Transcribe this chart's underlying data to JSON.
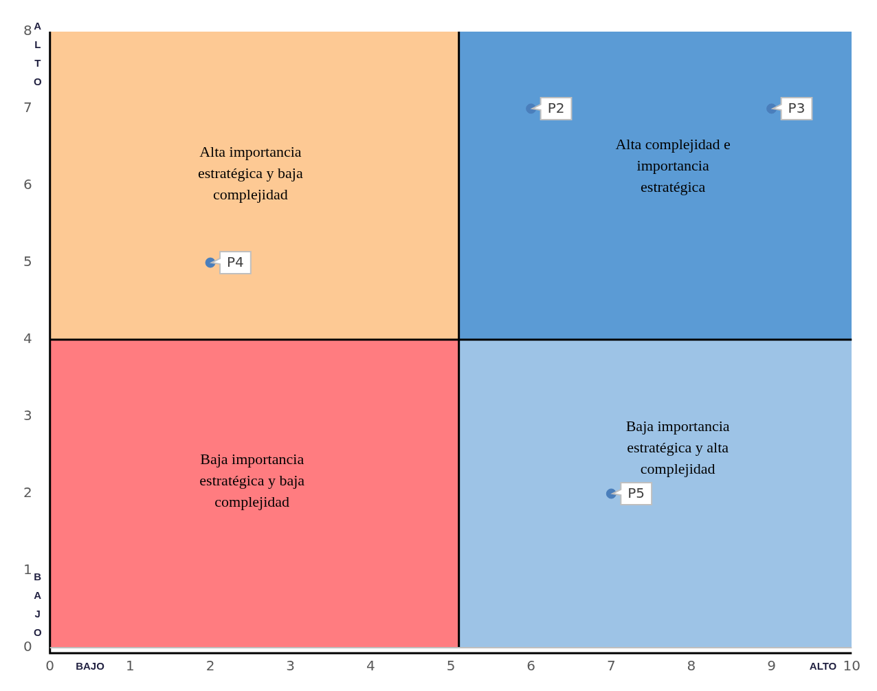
{
  "chart_data": {
    "type": "scatter",
    "x": [
      6,
      9,
      2,
      7
    ],
    "values": [
      7,
      7,
      5,
      2
    ],
    "value_labels": [
      "P2",
      "P3",
      "P4",
      "P5"
    ],
    "color": "#4a7ebb",
    "marker": "circle",
    "xlim": [
      0,
      10
    ],
    "xticks": [
      0,
      1,
      2,
      3,
      4,
      5,
      6,
      7,
      8,
      9,
      10
    ],
    "ylim": [
      0,
      8
    ],
    "yticks": [
      0,
      1,
      2,
      3,
      4,
      5,
      6,
      7,
      8
    ],
    "grid": false,
    "legend": false,
    "ref_lines": [
      {
        "axis": "x",
        "value": 5.1,
        "color": "#000000"
      },
      {
        "axis": "y",
        "value": 4,
        "color": "#000000"
      }
    ],
    "annotations": [
      "ALTO",
      "BAJO",
      "BAJO",
      "ALTO",
      "Alta importancia estratégica y baja complejidad",
      "Alta complejidad e importancia estratégica",
      "Baja importancia estratégica y baja complejidad",
      "Baja importancia estratégica y alta complejidad"
    ]
  }
}
